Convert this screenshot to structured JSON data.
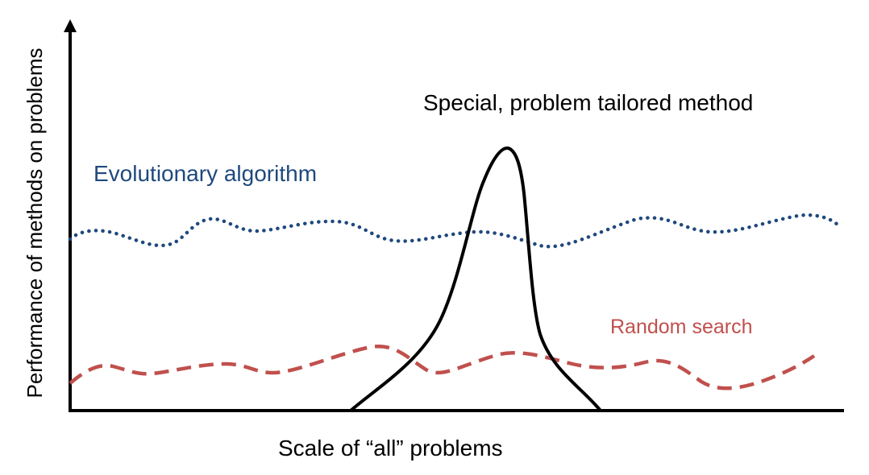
{
  "diagram": {
    "title": "Special, problem tailored method",
    "xlabel": "Scale of “all” problems",
    "ylabel": "Performance of methods on problems",
    "curves": [
      {
        "id": "evolutionary",
        "label": "Evolutionary algorithm",
        "color": "#1f497d",
        "style": "dotted"
      },
      {
        "id": "random",
        "label": "Random search",
        "color": "#c0504d",
        "style": "dashed"
      },
      {
        "id": "special",
        "label": "Special, problem tailored method",
        "color": "#000000",
        "style": "solid"
      }
    ]
  },
  "colors": {
    "axis": "#000000",
    "evolutionary": "#1f497d",
    "random": "#c0504d",
    "special": "#000000",
    "background": "#ffffff"
  }
}
